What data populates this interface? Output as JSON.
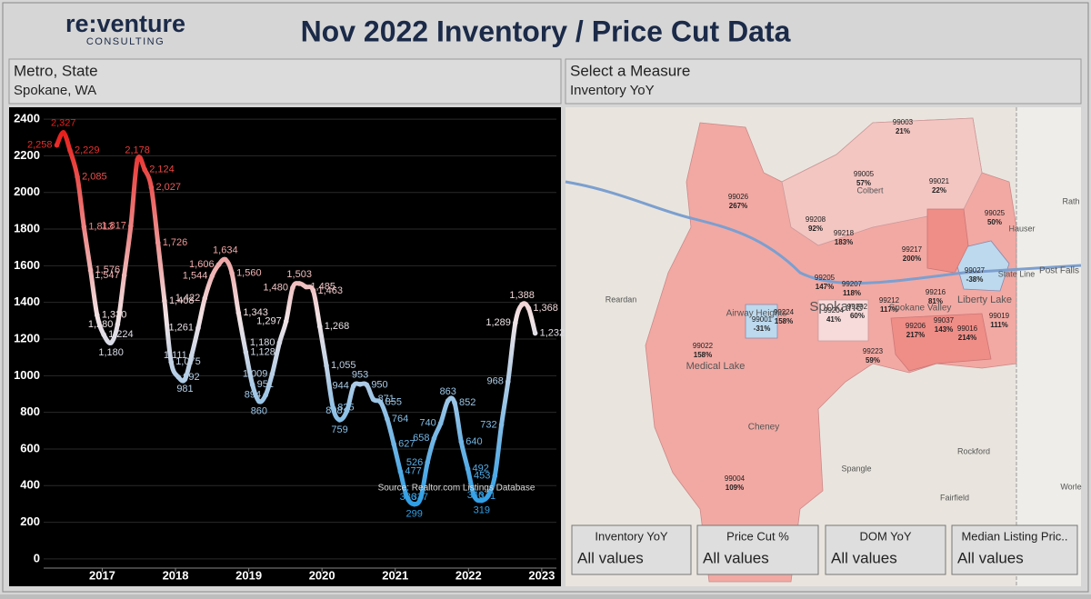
{
  "header": {
    "logo": "re:venture",
    "logo_sub": "CONSULTING",
    "title": "Nov 2022 Inventory / Price Cut Data"
  },
  "metro_panel": {
    "label": "Metro, State",
    "value": "Spokane, WA"
  },
  "measure_panel": {
    "label": "Select a Measure",
    "value": "Inventory YoY"
  },
  "chart_data": {
    "type": "line",
    "annotation": "Source: Realtor.com Listings Database",
    "colors": {
      "high": "#e8201c",
      "mid": "#f2e4e6",
      "low": "#2f9fe6"
    },
    "x": [
      2016.38,
      2016.47,
      2016.56,
      2016.66,
      2016.75,
      2016.84,
      2016.93,
      2017.02,
      2017.12,
      2017.21,
      2017.3,
      2017.39,
      2017.48,
      2017.58,
      2017.67,
      2017.76,
      2017.85,
      2017.94,
      2018.04,
      2018.13,
      2018.22,
      2018.31,
      2018.4,
      2018.5,
      2018.59,
      2018.68,
      2018.77,
      2018.86,
      2018.96,
      2019.05,
      2019.14,
      2019.23,
      2019.32,
      2019.42,
      2019.51,
      2019.6,
      2019.69,
      2019.78,
      2019.88,
      2019.97,
      2020.06,
      2020.15,
      2020.24,
      2020.34,
      2020.43,
      2020.52,
      2020.61,
      2020.7,
      2020.8,
      2020.89,
      2020.98,
      2021.07,
      2021.16,
      2021.26,
      2021.35,
      2021.44,
      2021.53,
      2021.62,
      2021.72,
      2021.81,
      2021.9,
      2021.99,
      2022.08,
      2022.18,
      2022.27,
      2022.36,
      2022.45,
      2022.54,
      2022.64,
      2022.73,
      2022.82,
      2022.91
    ],
    "values": [
      2258,
      2327,
      2229,
      2085,
      1813,
      1576,
      1330,
      1224,
      1180,
      1280,
      1547,
      1817,
      2178,
      2124,
      2027,
      1726,
      1408,
      1075,
      992,
      981,
      1111,
      1261,
      1422,
      1544,
      1606,
      1634,
      1560,
      1343,
      1128,
      951,
      860,
      894,
      1009,
      1180,
      1297,
      1480,
      1503,
      1485,
      1463,
      1268,
      1055,
      825,
      759,
      808,
      944,
      953,
      950,
      871,
      855,
      764,
      627,
      477,
      337,
      299,
      336,
      526,
      658,
      740,
      863,
      852,
      640,
      492,
      341,
      319,
      346,
      453,
      732,
      968,
      1289,
      1388,
      1368,
      1232
    ],
    "value_labels": [
      "2,258",
      "2,327",
      "2,229",
      "2,085",
      "1,813",
      "1,576",
      "1,330",
      "1,224",
      "1,180",
      "1,280",
      "1,547",
      "1,817",
      "2,178",
      "2,124",
      "2,027",
      "1,726",
      "1,408",
      "1,075",
      "992",
      "981",
      "1,111",
      "1,261",
      "1,422",
      "1,544",
      "1,606",
      "1,634",
      "1,560",
      "1,343",
      "1,128",
      "951",
      "860",
      "894",
      "1,009",
      "1,180",
      "1,297",
      "1,480",
      "1,503",
      "1,485",
      "1,463",
      "1,268",
      "1,055",
      "825",
      "759",
      "808",
      "944",
      "953",
      "950",
      "871",
      "855",
      "764",
      "627",
      "477",
      "337",
      "299",
      "336",
      "526",
      "658",
      "740",
      "863",
      "852",
      "640",
      "492",
      "341",
      "319",
      "346",
      "453",
      "732",
      "968",
      "1,289",
      "1,388",
      "1,368",
      "1,232"
    ],
    "xlim": [
      2016.2,
      2023.2
    ],
    "xticks": [
      2017,
      2018,
      2019,
      2020,
      2021,
      2022,
      2023
    ],
    "ylim": [
      -50,
      2450
    ],
    "yticks": [
      0,
      200,
      400,
      600,
      800,
      1000,
      1200,
      1400,
      1600,
      1800,
      2000,
      2200,
      2400
    ],
    "grid": true
  },
  "map": {
    "regions": [
      {
        "zip": "99003",
        "value": "21%"
      },
      {
        "zip": "99005",
        "value": "57%"
      },
      {
        "zip": "99021",
        "value": "22%"
      },
      {
        "zip": "99026",
        "value": "267%"
      },
      {
        "zip": "99025",
        "value": "50%"
      },
      {
        "zip": "99208",
        "value": "92%"
      },
      {
        "zip": "99218",
        "value": "183%"
      },
      {
        "zip": "99217",
        "value": "200%"
      },
      {
        "zip": "99027",
        "value": "-38%"
      },
      {
        "zip": "99205",
        "value": "147%"
      },
      {
        "zip": "99207",
        "value": "118%"
      },
      {
        "zip": "99216",
        "value": "81%"
      },
      {
        "zip": "99019",
        "value": "111%"
      },
      {
        "zip": "99212",
        "value": "117%"
      },
      {
        "zip": "99202",
        "value": "60%"
      },
      {
        "zip": "99204",
        "value": "41%"
      },
      {
        "zip": "99001",
        "value": "-31%"
      },
      {
        "zip": "99224",
        "value": "158%"
      },
      {
        "zip": "99206",
        "value": "217%"
      },
      {
        "zip": "99037",
        "value": "143%"
      },
      {
        "zip": "99016",
        "value": "214%"
      },
      {
        "zip": "99223",
        "value": "59%"
      },
      {
        "zip": "99022",
        "value": "158%"
      },
      {
        "zip": "99004",
        "value": "109%"
      }
    ],
    "places": [
      "Colbert",
      "Hauser",
      "State Line",
      "Post Falls",
      "Liberty Lake",
      "Reardan",
      "Airway Heights",
      "Spokane",
      "Spokane Valley",
      "Medical Lake",
      "Cheney",
      "Spangle",
      "Rockford",
      "Fairfield",
      "Rath",
      "Worle"
    ]
  },
  "filters": [
    {
      "label": "Inventory YoY",
      "value": "All values"
    },
    {
      "label": "Price Cut %",
      "value": "All values"
    },
    {
      "label": "DOM YoY",
      "value": "All values"
    },
    {
      "label": "Median Listing Pric..",
      "value": "All values"
    }
  ]
}
